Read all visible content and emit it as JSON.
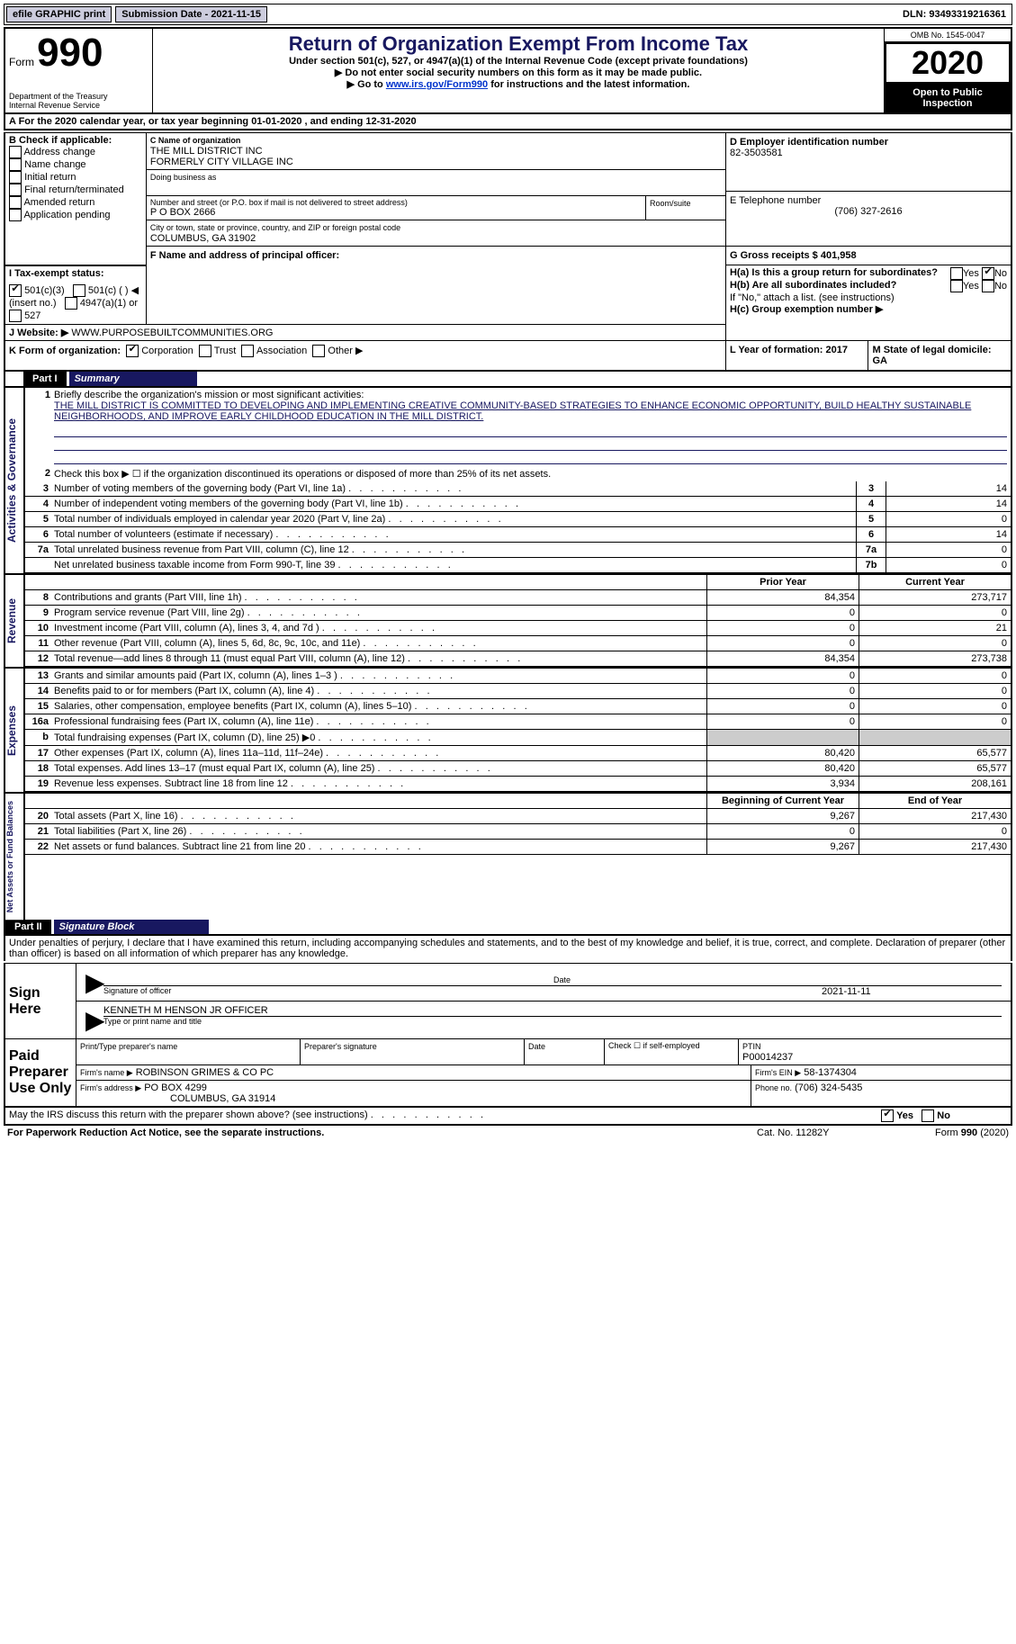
{
  "top_bar": {
    "efile": "efile GRAPHIC print",
    "submission_label": "Submission Date - 2021-11-15",
    "dln_label": "DLN: 93493319216361"
  },
  "header": {
    "form_small": "Form",
    "form_num": "990",
    "dept": "Department of the Treasury\nInternal Revenue Service",
    "title": "Return of Organization Exempt From Income Tax",
    "sub1": "Under section 501(c), 527, or 4947(a)(1) of the Internal Revenue Code (except private foundations)",
    "sub2": "▶ Do not enter social security numbers on this form as it may be made public.",
    "sub3_pre": "▶ Go to ",
    "sub3_link": "www.irs.gov/Form990",
    "sub3_post": " for instructions and the latest information.",
    "omb": "OMB No. 1545-0047",
    "year": "2020",
    "open": "Open to Public Inspection"
  },
  "period": {
    "line": "A For the 2020 calendar year, or tax year beginning 01-01-2020   , and ending 12-31-2020"
  },
  "boxB": {
    "label": "B Check if applicable:",
    "items": [
      "Address change",
      "Name change",
      "Initial return",
      "Final return/terminated",
      "Amended return",
      "Application pending"
    ]
  },
  "boxC": {
    "name_label": "C Name of organization",
    "name1": "THE MILL DISTRICT INC",
    "name2": "FORMERLY CITY VILLAGE INC",
    "dba": "Doing business as",
    "street_label": "Number and street (or P.O. box if mail is not delivered to street address)",
    "street": "P O BOX 2666",
    "room_label": "Room/suite",
    "city_label": "City or town, state or province, country, and ZIP or foreign postal code",
    "city": "COLUMBUS, GA   31902"
  },
  "boxD": {
    "label": "D Employer identification number",
    "value": "82-3503581"
  },
  "boxE": {
    "label": "E Telephone number",
    "value": "(706) 327-2616"
  },
  "boxG": {
    "label": "G Gross receipts $ 401,958"
  },
  "boxF": {
    "label": "F  Name and address of principal officer:"
  },
  "boxH": {
    "ha": "H(a)  Is this a group return for subordinates?",
    "hb": "H(b)  Are all subordinates included?",
    "hb2": "If \"No,\" attach a list. (see instructions)",
    "hc": "H(c)  Group exemption number ▶",
    "yes": "Yes",
    "no": "No"
  },
  "boxI": {
    "label": "I   Tax-exempt status:",
    "o1": "501(c)(3)",
    "o2": "501(c) (  ) ◀ (insert no.)",
    "o3": "4947(a)(1) or",
    "o4": "527"
  },
  "boxJ": {
    "label": "J   Website: ▶",
    "value": " WWW.PURPOSEBUILTCOMMUNITIES.ORG"
  },
  "boxK": {
    "label": "K Form of organization:",
    "o1": "Corporation",
    "o2": "Trust",
    "o3": "Association",
    "o4": "Other ▶"
  },
  "boxL": {
    "label": "L Year of formation: 2017"
  },
  "boxM": {
    "label": "M State of legal domicile: GA"
  },
  "part1": {
    "label": "Part I",
    "title": "Summary",
    "q1": "Briefly describe the organization's mission or most significant activities:",
    "mission": "THE MILL DISTRICT IS COMMITTED TO DEVELOPING AND IMPLEMENTING CREATIVE COMMUNITY-BASED STRATEGIES TO ENHANCE ECONOMIC OPPORTUNITY, BUILD HEALTHY SUSTAINABLE NEIGHBORHOODS, AND IMPROVE EARLY CHILDHOOD EDUCATION IN THE MILL DISTRICT.",
    "q2": "Check this box ▶ ☐  if the organization discontinued its operations or disposed of more than 25% of its net assets.",
    "sides": {
      "gov": "Activities & Governance",
      "rev": "Revenue",
      "exp": "Expenses",
      "net": "Net Assets or Fund Balances"
    },
    "gov_rows": [
      {
        "n": "3",
        "d": "Number of voting members of the governing body (Part VI, line 1a)",
        "b": "3",
        "v": "14"
      },
      {
        "n": "4",
        "d": "Number of independent voting members of the governing body (Part VI, line 1b)",
        "b": "4",
        "v": "14"
      },
      {
        "n": "5",
        "d": "Total number of individuals employed in calendar year 2020 (Part V, line 2a)",
        "b": "5",
        "v": "0"
      },
      {
        "n": "6",
        "d": "Total number of volunteers (estimate if necessary)",
        "b": "6",
        "v": "14"
      },
      {
        "n": "7a",
        "d": "Total unrelated business revenue from Part VIII, column (C), line 12",
        "b": "7a",
        "v": "0"
      },
      {
        "n": "",
        "d": "Net unrelated business taxable income from Form 990-T, line 39",
        "b": "7b",
        "v": "0"
      }
    ],
    "col_hdrs": {
      "prior": "Prior Year",
      "current": "Current Year"
    },
    "rev_rows": [
      {
        "n": "8",
        "d": "Contributions and grants (Part VIII, line 1h)",
        "p": "84,354",
        "c": "273,717"
      },
      {
        "n": "9",
        "d": "Program service revenue (Part VIII, line 2g)",
        "p": "0",
        "c": "0"
      },
      {
        "n": "10",
        "d": "Investment income (Part VIII, column (A), lines 3, 4, and 7d )",
        "p": "0",
        "c": "21"
      },
      {
        "n": "11",
        "d": "Other revenue (Part VIII, column (A), lines 5, 6d, 8c, 9c, 10c, and 11e)",
        "p": "0",
        "c": "0"
      },
      {
        "n": "12",
        "d": "Total revenue—add lines 8 through 11 (must equal Part VIII, column (A), line 12)",
        "p": "84,354",
        "c": "273,738"
      }
    ],
    "exp_rows": [
      {
        "n": "13",
        "d": "Grants and similar amounts paid (Part IX, column (A), lines 1–3 )",
        "p": "0",
        "c": "0"
      },
      {
        "n": "14",
        "d": "Benefits paid to or for members (Part IX, column (A), line 4)",
        "p": "0",
        "c": "0"
      },
      {
        "n": "15",
        "d": "Salaries, other compensation, employee benefits (Part IX, column (A), lines 5–10)",
        "p": "0",
        "c": "0"
      },
      {
        "n": "16a",
        "d": "Professional fundraising fees (Part IX, column (A), line 11e)",
        "p": "0",
        "c": "0"
      },
      {
        "n": "b",
        "d": "Total fundraising expenses (Part IX, column (D), line 25) ▶0",
        "p": "",
        "c": "",
        "shade": true
      },
      {
        "n": "17",
        "d": "Other expenses (Part IX, column (A), lines 11a–11d, 11f–24e)",
        "p": "80,420",
        "c": "65,577"
      },
      {
        "n": "18",
        "d": "Total expenses. Add lines 13–17 (must equal Part IX, column (A), line 25)",
        "p": "80,420",
        "c": "65,577"
      },
      {
        "n": "19",
        "d": "Revenue less expenses. Subtract line 18 from line 12",
        "p": "3,934",
        "c": "208,161"
      }
    ],
    "net_hdrs": {
      "begin": "Beginning of Current Year",
      "end": "End of Year"
    },
    "net_rows": [
      {
        "n": "20",
        "d": "Total assets (Part X, line 16)",
        "p": "9,267",
        "c": "217,430"
      },
      {
        "n": "21",
        "d": "Total liabilities (Part X, line 26)",
        "p": "0",
        "c": "0"
      },
      {
        "n": "22",
        "d": "Net assets or fund balances. Subtract line 21 from line 20",
        "p": "9,267",
        "c": "217,430"
      }
    ]
  },
  "part2": {
    "label": "Part II",
    "title": "Signature Block",
    "decl": "Under penalties of perjury, I declare that I have examined this return, including accompanying schedules and statements, and to the best of my knowledge and belief, it is true, correct, and complete. Declaration of preparer (other than officer) is based on all information of which preparer has any knowledge.",
    "sign_here": "Sign Here",
    "sig_off": "Signature of officer",
    "date": "Date",
    "date_val": "2021-11-11",
    "name": "KENNETH M HENSON JR OFFICER",
    "name_lbl": "Type or print name and title",
    "paid": "Paid Preparer Use Only",
    "p_name_lbl": "Print/Type preparer's name",
    "p_sig_lbl": "Preparer's signature",
    "p_date_lbl": "Date",
    "p_check": "Check ☐ if self-employed",
    "ptin_lbl": "PTIN",
    "ptin": "P00014237",
    "firm_name_lbl": "Firm's name   ▶",
    "firm_name": "ROBINSON GRIMES & CO PC",
    "firm_ein_lbl": "Firm's EIN ▶",
    "firm_ein": "58-1374304",
    "firm_addr_lbl": "Firm's address ▶",
    "firm_addr": "PO BOX 4299",
    "firm_city": "COLUMBUS, GA   31914",
    "phone_lbl": "Phone no.",
    "phone": "(706) 324-5435",
    "discuss": "May the IRS discuss this return with the preparer shown above? (see instructions)",
    "paperwork": "For Paperwork Reduction Act Notice, see the separate instructions.",
    "catno": "Cat. No. 11282Y",
    "formfoot": "Form 990 (2020)"
  }
}
